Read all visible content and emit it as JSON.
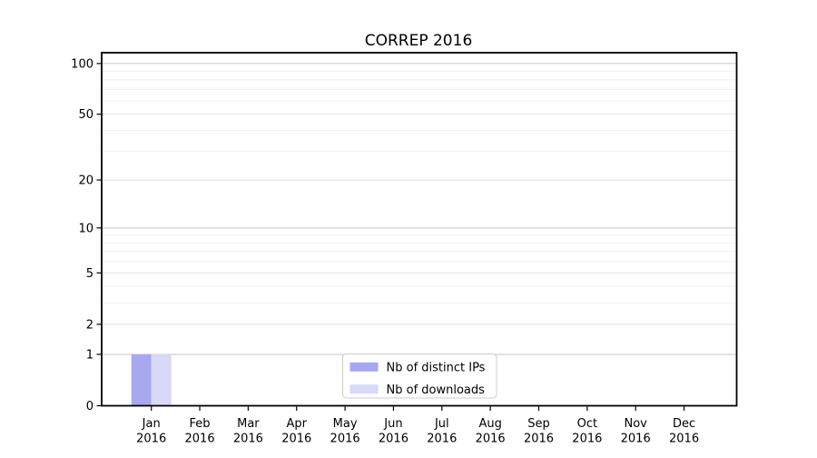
{
  "chart_data": {
    "type": "bar",
    "title": "CORREP 2016",
    "categories": [
      "Jan",
      "Feb",
      "Mar",
      "Apr",
      "May",
      "Jun",
      "Jul",
      "Aug",
      "Sep",
      "Oct",
      "Nov",
      "Dec"
    ],
    "category_year": "2016",
    "series": [
      {
        "name": "Nb of distinct IPs",
        "color": "#a8a8f0",
        "values": [
          1,
          0,
          0,
          0,
          0,
          0,
          0,
          0,
          0,
          0,
          0,
          0
        ]
      },
      {
        "name": "Nb of downloads",
        "color": "#d8d8f8",
        "values": [
          1,
          0,
          0,
          0,
          0,
          0,
          0,
          0,
          0,
          0,
          0,
          0
        ]
      }
    ],
    "xlabel": "",
    "ylabel": "",
    "ylim": [
      0,
      100
    ],
    "yaxis": {
      "scale": "log1p",
      "tick_values": [
        0,
        1,
        2,
        5,
        10,
        20,
        50,
        100
      ],
      "tick_labels": [
        "0",
        "1",
        "2",
        "5",
        "10",
        "20",
        "50",
        "100"
      ],
      "gridlines": {
        "decade": [
          1,
          10,
          100
        ],
        "labeled": [
          2,
          5,
          20,
          50
        ],
        "minor": [
          3,
          4,
          6,
          7,
          8,
          9,
          30,
          40,
          60,
          70,
          80,
          90
        ]
      }
    },
    "legend": {
      "position": "bottom-center",
      "entries": [
        "Nb of distinct IPs",
        "Nb of downloads"
      ]
    },
    "grid": true,
    "colors": {
      "background": "#ffffff",
      "axis": "#000000",
      "text": "#000000",
      "grid_decade": "#c6c6c6",
      "grid_labeled": "#e2e2e2",
      "grid_minor": "#efefef",
      "legend_border": "#cccccc",
      "legend_background": "#ffffff"
    }
  }
}
